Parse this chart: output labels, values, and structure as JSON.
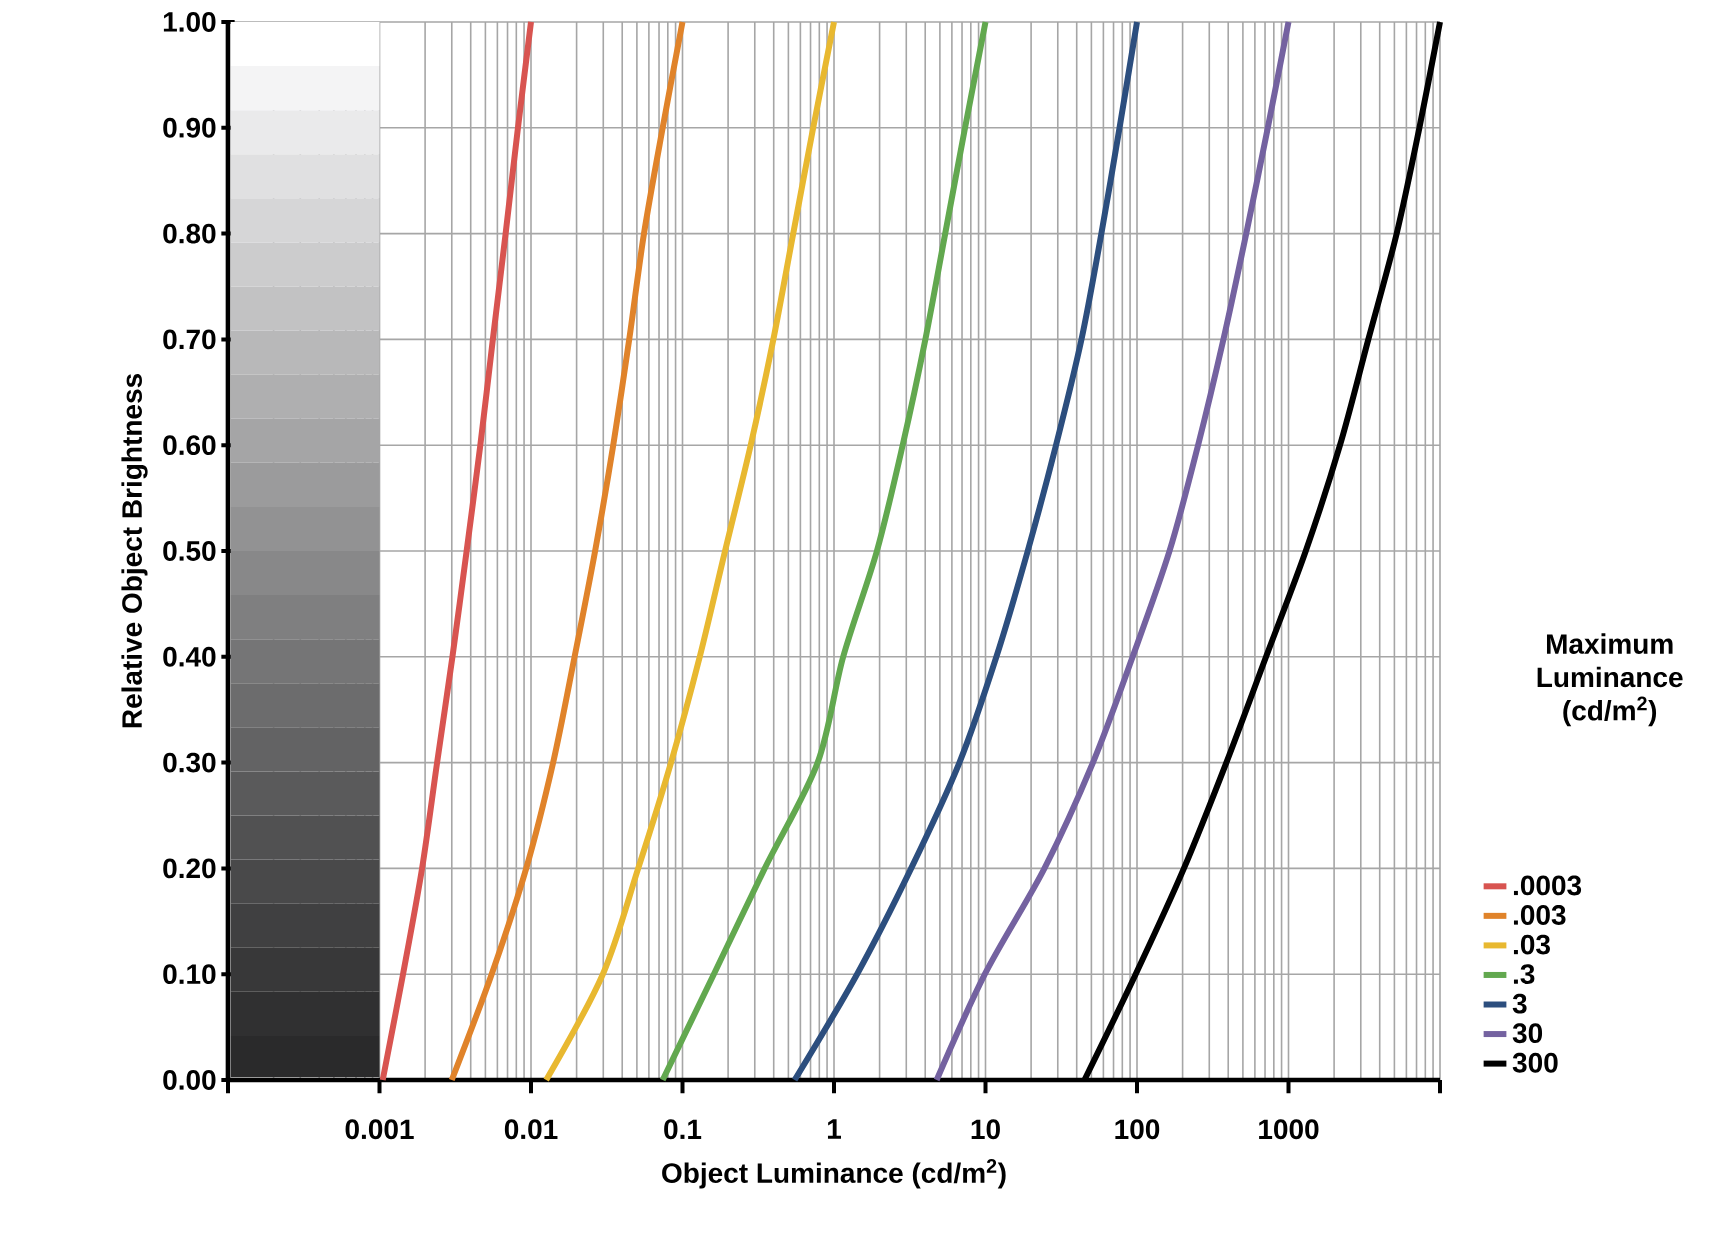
{
  "chart_data": {
    "type": "line",
    "xlabel": "Object Luminance (cd/m$^{2}$)",
    "ylabel": "Relative Object Brightness",
    "legend_title": "Maximum Luminance (cd/m$^{2}$)",
    "log": "x",
    "grid": true,
    "legend": "right",
    "xlim": [
      0.0001,
      10000
    ],
    "ylim": [
      0,
      1
    ],
    "xticks": [
      {
        "value": 0.0001,
        "label": null
      },
      0.001,
      0.01,
      0.1,
      1,
      10,
      100,
      1000,
      {
        "value": 10000,
        "label": null
      }
    ],
    "yticks": [
      {
        "value": 0,
        "label": "0.00"
      },
      {
        "value": 0.1,
        "label": "0.10"
      },
      {
        "value": 0.2,
        "label": "0.20"
      },
      {
        "value": 0.3,
        "label": "0.30"
      },
      {
        "value": 0.4,
        "label": "0.40"
      },
      {
        "value": 0.5,
        "label": "0.50"
      },
      {
        "value": 0.6,
        "label": "0.60"
      },
      {
        "value": 0.7,
        "label": "0.70"
      },
      {
        "value": 0.8,
        "label": "0.80"
      },
      {
        "value": 0.9,
        "label": "0.90"
      },
      {
        "value": 1,
        "label": "1.00"
      }
    ],
    "series": [
      {
        "name": ".0003",
        "color": "#d85450",
        "x": [
          0.00105,
          0.00143,
          0.00191,
          0.0024,
          0.00303,
          0.00376,
          0.00463,
          0.0056,
          0.0068,
          0.0082,
          0.01
        ],
        "values": [
          0,
          0.1,
          0.2,
          0.3,
          0.4,
          0.5,
          0.6,
          0.7,
          0.8,
          0.9,
          1
        ]
      },
      {
        "name": ".003",
        "color": "#e0832a",
        "x": [
          0.003,
          0.0055,
          0.0093,
          0.014,
          0.0194,
          0.0265,
          0.0349,
          0.0445,
          0.0557,
          0.074,
          0.1
        ],
        "values": [
          0,
          0.1,
          0.2,
          0.3,
          0.4,
          0.5,
          0.6,
          0.7,
          0.8,
          0.9,
          1
        ]
      },
      {
        "name": ".03",
        "color": "#e8b830",
        "x": [
          0.0126,
          0.0298,
          0.051,
          0.084,
          0.13,
          0.191,
          0.282,
          0.398,
          0.538,
          0.729,
          1
        ],
        "values": [
          0,
          0.1,
          0.2,
          0.3,
          0.4,
          0.5,
          0.6,
          0.7,
          0.8,
          0.9,
          1
        ]
      },
      {
        "name": ".3",
        "color": "#62a84f",
        "x": [
          0.074,
          0.161,
          0.349,
          0.78,
          1.15,
          1.92,
          2.84,
          4.01,
          5.42,
          7.33,
          10
        ],
        "values": [
          0,
          0.1,
          0.2,
          0.3,
          0.4,
          0.5,
          0.6,
          0.7,
          0.8,
          0.9,
          1
        ]
      },
      {
        "name": "3",
        "color": "#2c4e7e",
        "x": [
          0.55,
          1.42,
          3.23,
          6.73,
          11.8,
          19,
          29.2,
          43,
          58.2,
          76.7,
          100
        ],
        "values": [
          0,
          0.1,
          0.2,
          0.3,
          0.4,
          0.5,
          0.6,
          0.7,
          0.8,
          0.9,
          1
        ]
      },
      {
        "name": "30",
        "color": "#7462a0",
        "x": [
          4.76,
          9.9,
          24.5,
          51.2,
          93.6,
          164,
          253,
          372,
          526,
          730,
          1000
        ],
        "values": [
          0,
          0.1,
          0.2,
          0.3,
          0.4,
          0.5,
          0.6,
          0.7,
          0.8,
          0.9,
          1
        ]
      },
      {
        "name": "300",
        "color": "#000000",
        "x": [
          45,
          98,
          204,
          389,
          711,
          1300,
          2187,
          3365,
          5176,
          7311,
          10000
        ],
        "values": [
          0,
          0.1,
          0.2,
          0.3,
          0.4,
          0.5,
          0.6,
          0.7,
          0.8,
          0.9,
          1
        ]
      }
    ]
  }
}
